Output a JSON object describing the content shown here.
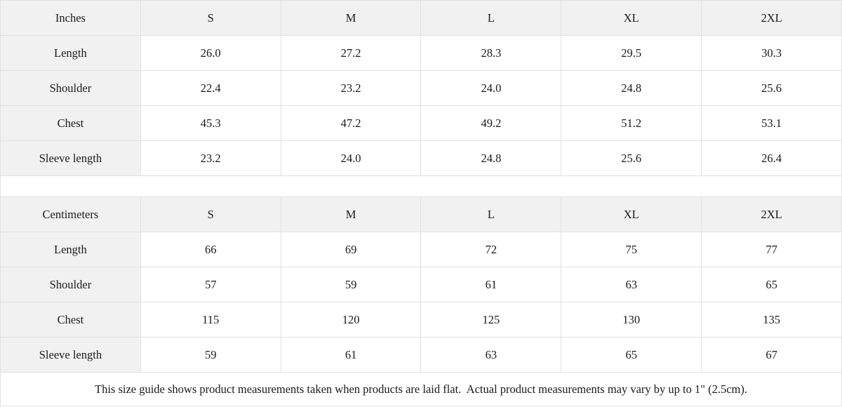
{
  "colors": {
    "shaded_cell_bg": "#f1f1f1",
    "cell_bg": "#ffffff",
    "border": "#e1e1e1",
    "text": "#1a1a1a"
  },
  "inches_table": {
    "unit_label": "Inches",
    "size_headers": [
      "S",
      "M",
      "L",
      "XL",
      "2XL"
    ],
    "rows": [
      {
        "label": "Length",
        "values": [
          "26.0",
          "27.2",
          "28.3",
          "29.5",
          "30.3"
        ]
      },
      {
        "label": "Shoulder",
        "values": [
          "22.4",
          "23.2",
          "24.0",
          "24.8",
          "25.6"
        ]
      },
      {
        "label": "Chest",
        "values": [
          "45.3",
          "47.2",
          "49.2",
          "51.2",
          "53.1"
        ]
      },
      {
        "label": "Sleeve length",
        "values": [
          "23.2",
          "24.0",
          "24.8",
          "25.6",
          "26.4"
        ]
      }
    ]
  },
  "centimeters_table": {
    "unit_label": "Centimeters",
    "size_headers": [
      "S",
      "M",
      "L",
      "XL",
      "2XL"
    ],
    "rows": [
      {
        "label": "Length",
        "values": [
          "66",
          "69",
          "72",
          "75",
          "77"
        ]
      },
      {
        "label": "Shoulder",
        "values": [
          "57",
          "59",
          "61",
          "63",
          "65"
        ]
      },
      {
        "label": "Chest",
        "values": [
          "115",
          "120",
          "125",
          "130",
          "135"
        ]
      },
      {
        "label": "Sleeve length",
        "values": [
          "59",
          "61",
          "63",
          "65",
          "67"
        ]
      }
    ]
  },
  "footer": {
    "note": "This size guide shows product measurements taken when products are laid flat.  Actual product measurements may vary by up to 1\" (2.5cm)."
  }
}
